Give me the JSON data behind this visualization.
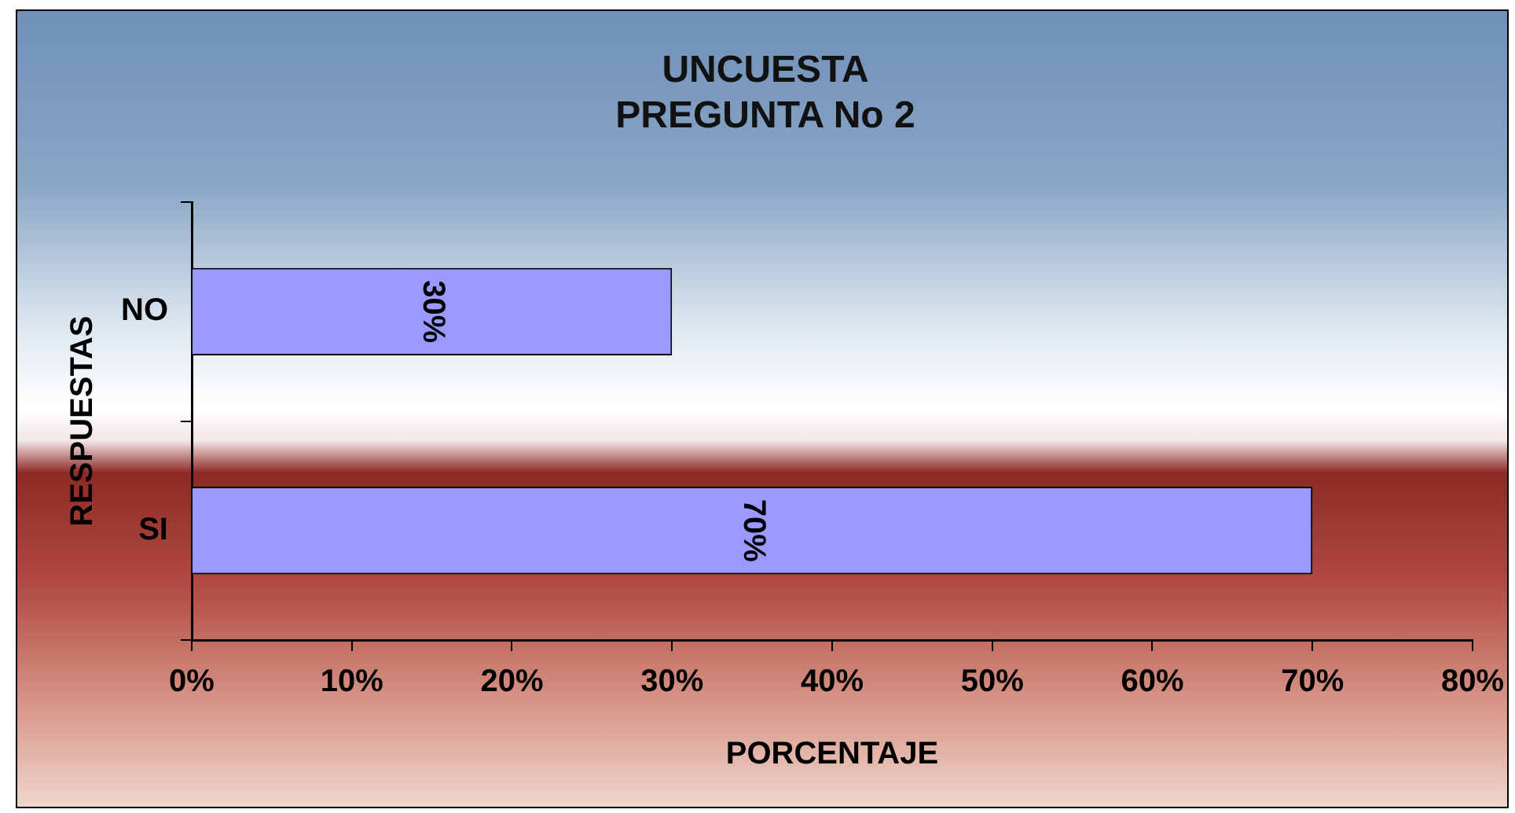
{
  "chart_data": {
    "type": "bar",
    "orientation": "horizontal",
    "title": "UNCUESTA\nPREGUNTA No 2",
    "xlabel": "PORCENTAJE",
    "ylabel": "RESPUESTAS",
    "categories": [
      "NO",
      "SI"
    ],
    "values": [
      30,
      70
    ],
    "color": "#9999ff",
    "value_labels": [
      "30%",
      "70%"
    ],
    "xlim": [
      0,
      80
    ],
    "xticks": [
      {
        "value": 0,
        "label": "0%"
      },
      {
        "value": 10,
        "label": "10%"
      },
      {
        "value": 20,
        "label": "20%"
      },
      {
        "value": 30,
        "label": "30%"
      },
      {
        "value": 40,
        "label": "40%"
      },
      {
        "value": 50,
        "label": "50%"
      },
      {
        "value": 60,
        "label": "60%"
      },
      {
        "value": 70,
        "label": "70%"
      },
      {
        "value": 80,
        "label": "80%"
      }
    ],
    "grid": false,
    "legend": false
  }
}
